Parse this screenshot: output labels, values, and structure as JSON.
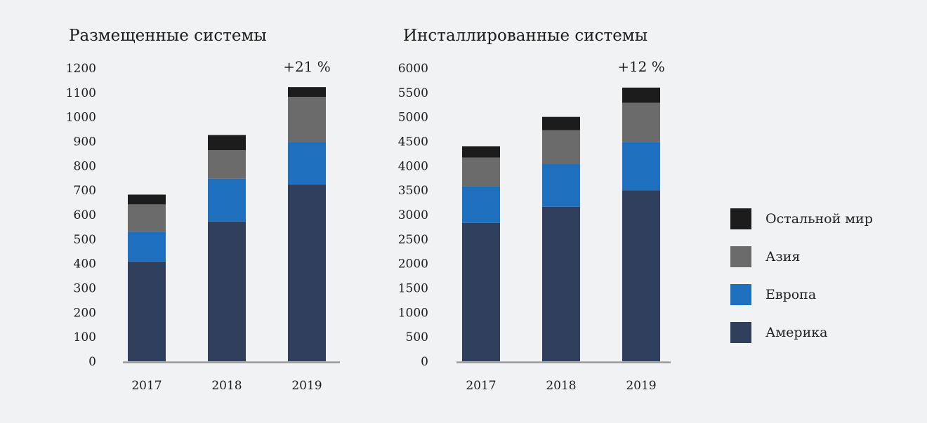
{
  "chart_data": [
    {
      "type": "bar",
      "stacked": true,
      "title": "Размещенные системы",
      "annotation": "+21 %",
      "categories": [
        "2017",
        "2018",
        "2019"
      ],
      "ylim": [
        0,
        1200
      ],
      "yticks": [
        "0",
        "100",
        "200",
        "300",
        "400",
        "500",
        "600",
        "700",
        "800",
        "900",
        "1000",
        "1100",
        "1200"
      ],
      "series": [
        {
          "name": "Америка",
          "color": "#2f3f5c",
          "values": [
            408,
            572,
            722
          ]
        },
        {
          "name": "Европа",
          "color": "#1f6fbf",
          "values": [
            122,
            175,
            175
          ]
        },
        {
          "name": "Азия",
          "color": "#6b6b6b",
          "values": [
            112,
            117,
            185
          ]
        },
        {
          "name": "Остальной мир",
          "color": "#1c1c1c",
          "values": [
            40,
            62,
            40
          ]
        }
      ]
    },
    {
      "type": "bar",
      "stacked": true,
      "title": "Инсталлированные системы",
      "annotation": "+12 %",
      "categories": [
        "2017",
        "2018",
        "2019"
      ],
      "ylim": [
        0,
        6000
      ],
      "yticks": [
        "0",
        "500",
        "1000",
        "1500",
        "2000",
        "2500",
        "3000",
        "3500",
        "4000",
        "4500",
        "5000",
        "5500",
        "6000"
      ],
      "series": [
        {
          "name": "Америка",
          "color": "#2f3f5c",
          "values": [
            2830,
            3160,
            3500
          ]
        },
        {
          "name": "Европа",
          "color": "#1f6fbf",
          "values": [
            750,
            880,
            990
          ]
        },
        {
          "name": "Азия",
          "color": "#6b6b6b",
          "values": [
            590,
            690,
            800
          ]
        },
        {
          "name": "Остальной мир",
          "color": "#1c1c1c",
          "values": [
            230,
            270,
            310
          ]
        }
      ]
    }
  ],
  "legend": [
    {
      "label": "Остальной мир",
      "color": "#1c1c1c"
    },
    {
      "label": "Азия",
      "color": "#6b6b6b"
    },
    {
      "label": "Европа",
      "color": "#1f6fbf"
    },
    {
      "label": "Америка",
      "color": "#2f3f5c"
    }
  ]
}
